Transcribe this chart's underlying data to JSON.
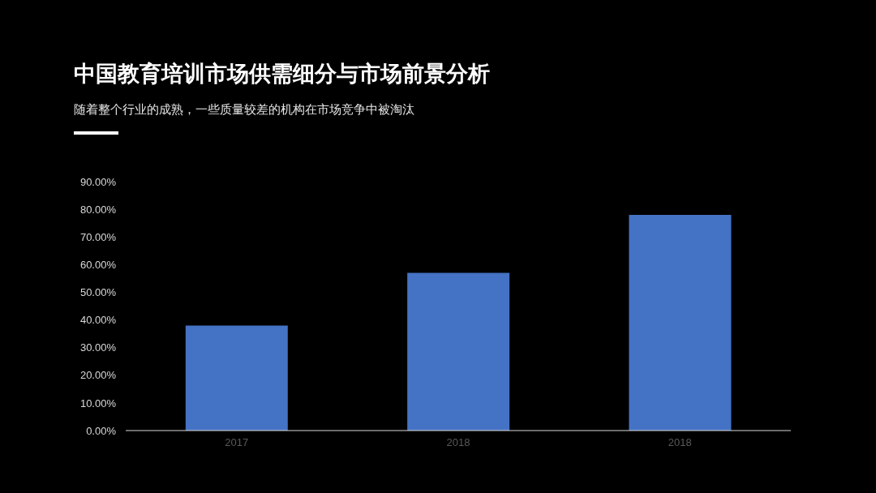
{
  "chart_data": {
    "type": "bar",
    "title": "中国教育培训市场供需细分与市场前景分析",
    "subtitle": "随着整个行业的成熟，一些质量较差的机构在市场竞争中被淘汰",
    "categories": [
      "2017",
      "2018",
      "2018"
    ],
    "values": [
      38,
      57,
      78
    ],
    "color": "#4472c4",
    "ylim": [
      0,
      90
    ],
    "yticks": [
      {
        "value": 0,
        "label": "0.00%"
      },
      {
        "value": 10,
        "label": "10.00%"
      },
      {
        "value": 20,
        "label": "20.00%"
      },
      {
        "value": 30,
        "label": "30.00%"
      },
      {
        "value": 40,
        "label": "40.00%"
      },
      {
        "value": 50,
        "label": "50.00%"
      },
      {
        "value": 60,
        "label": "60.00%"
      },
      {
        "value": 70,
        "label": "70.00%"
      },
      {
        "value": 80,
        "label": "80.00%"
      },
      {
        "value": 90,
        "label": "90.00%"
      }
    ]
  }
}
